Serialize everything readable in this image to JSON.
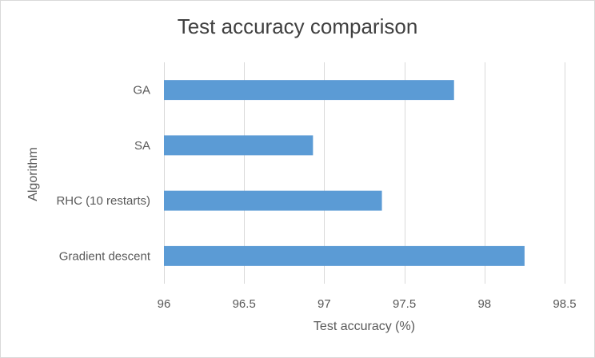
{
  "chart_data": {
    "type": "bar",
    "orientation": "horizontal",
    "title": "Test accuracy comparison",
    "xlabel": "Test accuracy (%)",
    "ylabel": "Algorithm",
    "categories": [
      "GA",
      "SA",
      "RHC (10 restarts)",
      "Gradient descent"
    ],
    "values": [
      97.81,
      96.93,
      97.36,
      98.25
    ],
    "xlim": [
      96,
      98.5
    ],
    "xticks": [
      96,
      96.5,
      97,
      97.5,
      98,
      98.5
    ],
    "xtick_labels": [
      "96",
      "96.5",
      "97",
      "97.5",
      "98",
      "98.5"
    ],
    "grid": "vertical",
    "legend": "none",
    "bar_color": "#5b9bd5",
    "grid_color": "#d9d9d9"
  }
}
